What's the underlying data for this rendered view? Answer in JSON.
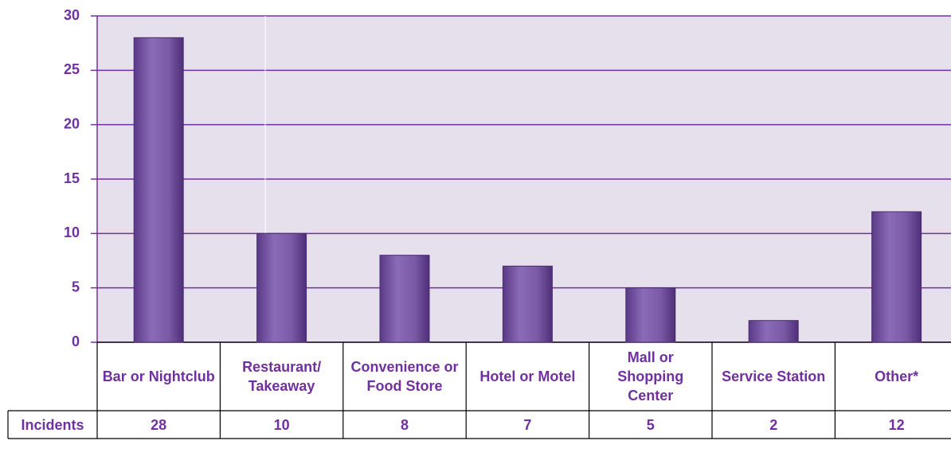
{
  "chart_data": {
    "type": "bar",
    "categories": [
      "Bar or Nightclub",
      "Restaurant/ Takeaway",
      "Convenience or Food Store",
      "Hotel or Motel",
      "Mall or Shopping Center",
      "Service Station",
      "Other*"
    ],
    "series": [
      {
        "name": "Incidents",
        "color": "#7f5fa8",
        "values": [
          28,
          10,
          8,
          7,
          5,
          2,
          12
        ]
      }
    ],
    "ylim": [
      0,
      30
    ],
    "yticks": [
      0,
      5,
      10,
      15,
      20,
      25,
      30
    ],
    "grid": true
  }
}
